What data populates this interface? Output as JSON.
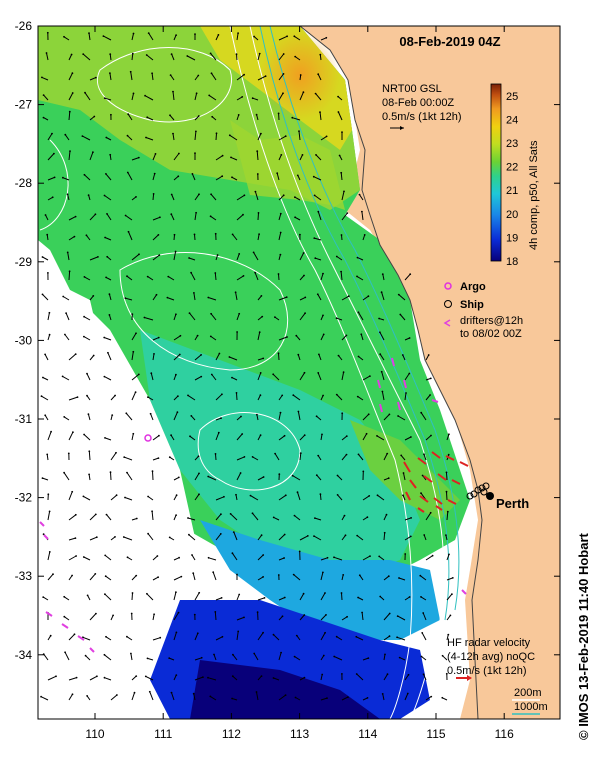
{
  "map": {
    "title": "08-Feb-2019 04Z",
    "product": {
      "line1": "NRT00 GSL",
      "line2": "08-Feb 00:00Z",
      "line3": "0.5m/s (1kt 12h)"
    },
    "colorbar": {
      "label": "4h comp, p50, All Sats",
      "ticks": [
        "25",
        "24",
        "23",
        "22",
        "21",
        "20",
        "19",
        "18"
      ],
      "range": [
        18,
        25.5
      ],
      "colors": [
        "#08007a",
        "#0a2bd6",
        "#1a86e8",
        "#1fc7d8",
        "#2fd18a",
        "#6bd234",
        "#c0dd20",
        "#f0d010",
        "#f09a20",
        "#c04e10",
        "#7a2006"
      ]
    },
    "legend": {
      "argo_label": "Argo",
      "ship_label": "Ship",
      "drifters_line1": "drifters@12h",
      "drifters_line2": "to 08/02 00Z"
    },
    "hf_radar": {
      "line1": "HF radar velocity",
      "line2": "(4-12h avg) noQC",
      "line3": "0.5m/s (1kt 12h)"
    },
    "isobaths": {
      "shallow": "200m",
      "deep": "1000m"
    },
    "place": "Perth",
    "lat_ticks": [
      "-26",
      "-27",
      "-28",
      "-29",
      "-30",
      "-31",
      "-32",
      "-33",
      "-34"
    ],
    "lon_ticks": [
      "110",
      "111",
      "112",
      "113",
      "114",
      "115",
      "116"
    ],
    "credit_symbol": "©",
    "credit": "IMOS 13-Feb-2019 11:40 Hobart",
    "colors": {
      "land": "#f8c89a",
      "coast_line": "#444444",
      "isobath": "#ffffff",
      "current_contour": "#30c0c0",
      "argo": "#e030e0",
      "drifter": "#e040e0",
      "hf_arrow": "#dd2222"
    }
  }
}
